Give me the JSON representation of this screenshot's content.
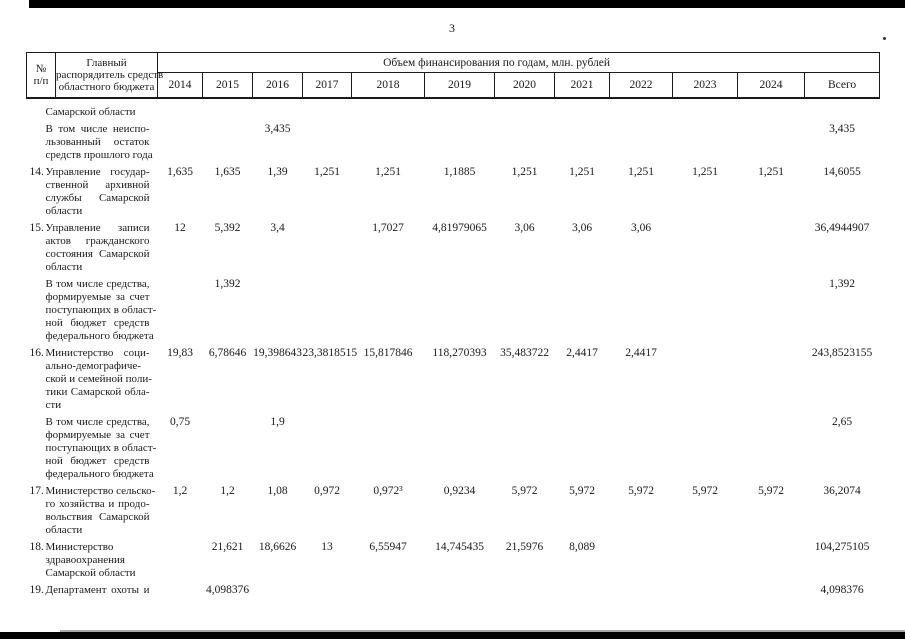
{
  "page": {
    "number": "3"
  },
  "table": {
    "header": {
      "num_lines": [
        "№",
        "п/п"
      ],
      "name_lines": [
        "Главный",
        "распорядитель средств",
        "областного бюджета"
      ],
      "span": "Объем финансирования по годам, млн. рублей",
      "years": [
        "2014",
        "2015",
        "2016",
        "2017",
        "2018",
        "2019",
        "2020",
        "2021",
        "2022",
        "2023",
        "2024"
      ],
      "total_label": "Всего"
    },
    "rows": [
      {
        "num": "",
        "cont": false,
        "name_lines": [
          "Самарской области"
        ],
        "values": [
          "",
          "",
          "",
          "",
          "",
          "",
          "",
          "",
          "",
          "",
          ""
        ],
        "total": ""
      },
      {
        "num": "",
        "cont": false,
        "name_lines": [
          "В том числе неиспо-",
          "льзованный остаток",
          "средств прошлого года"
        ],
        "values": [
          "",
          "",
          "3,435",
          "",
          "",
          "",
          "",
          "",
          "",
          "",
          ""
        ],
        "total": "3,435"
      },
      {
        "num": "14.",
        "cont": false,
        "name_lines": [
          "Управление государ-",
          "ственной архивной",
          "службы Самарской",
          "области"
        ],
        "values": [
          "1,635",
          "1,635",
          "1,39",
          "1,251",
          "1,251",
          "1,1885",
          "1,251",
          "1,251",
          "1,251",
          "1,251",
          "1,251"
        ],
        "total": "14,6055"
      },
      {
        "num": "15.",
        "cont": false,
        "name_lines": [
          "Управление записи",
          "актов гражданского",
          "состояния Самарской",
          "области"
        ],
        "values": [
          "12",
          "5,392",
          "3,4",
          "",
          "1,7027",
          "4,81979065",
          "3,06",
          "3,06",
          "3,06",
          "",
          ""
        ],
        "total": "36,4944907"
      },
      {
        "num": "",
        "cont": false,
        "name_lines": [
          "В том числе средства,",
          "формируемые за счет",
          "поступающих в област-",
          "ной бюджет средств",
          "федерального бюджета"
        ],
        "values": [
          "",
          "1,392",
          "",
          "",
          "",
          "",
          "",
          "",
          "",
          "",
          ""
        ],
        "total": "1,392"
      },
      {
        "num": "16.",
        "cont": false,
        "name_lines": [
          "Министерство соци-",
          "ально-демографиче-",
          "ской и семейной поли-",
          "тики Самарской обла-",
          "сти"
        ],
        "values": [
          "19,83",
          "6,78646",
          "19,398643",
          "23,3818515",
          "15,817846",
          "118,270393",
          "35,483722",
          "2,4417",
          "2,4417",
          "",
          ""
        ],
        "total": "243,8523155"
      },
      {
        "num": "",
        "cont": false,
        "name_lines": [
          "В том числе средства,",
          "формируемые за счет",
          "поступающих в област-",
          "ной бюджет средств",
          "федерального бюджета"
        ],
        "values": [
          "0,75",
          "",
          "1,9",
          "",
          "",
          "",
          "",
          "",
          "",
          "",
          ""
        ],
        "total": "2,65"
      },
      {
        "num": "17.",
        "cont": false,
        "name_lines": [
          "Министерство сельско-",
          "го хозяйства и продо-",
          "вольствия Самарской",
          "области"
        ],
        "values": [
          "1,2",
          "1,2",
          "1,08",
          "0,972",
          "0,972³",
          "0,9234",
          "5,972",
          "5,972",
          "5,972",
          "5,972",
          "5,972"
        ],
        "total": "36,2074"
      },
      {
        "num": "18.",
        "cont": false,
        "name_lines": [
          "Министерство",
          "здравоохранения",
          "Самарской области"
        ],
        "values": [
          "",
          "21,621",
          "18,6626",
          "13",
          "6,55947",
          "14,745435",
          "21,5976",
          "8,089",
          "",
          "",
          ""
        ],
        "total": "104,275105"
      },
      {
        "num": "19.",
        "cont": true,
        "name_lines": [
          "Департамент охоты и"
        ],
        "values": [
          "",
          "4,098376",
          "",
          "",
          "",
          "",
          "",
          "",
          "",
          "",
          ""
        ],
        "total": "4,098376"
      }
    ]
  }
}
